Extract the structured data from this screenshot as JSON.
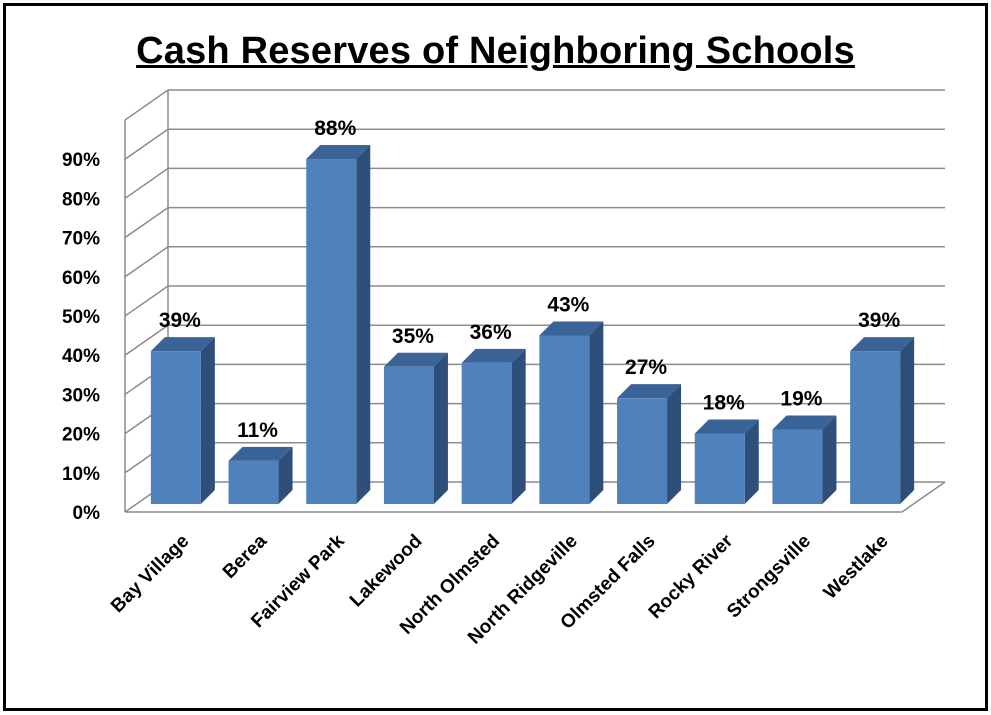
{
  "chart_data": {
    "type": "bar",
    "title": "Cash Reserves of Neighboring Schools",
    "categories": [
      "Bay Village",
      "Berea",
      "Fairview Park",
      "Lakewood",
      "North Olmsted",
      "North Ridgeville",
      "Olmsted Falls",
      "Rocky River",
      "Strongsville",
      "Westlake"
    ],
    "values": [
      39,
      11,
      88,
      35,
      36,
      43,
      27,
      18,
      19,
      39
    ],
    "data_labels": [
      "39%",
      "11%",
      "88%",
      "35%",
      "36%",
      "43%",
      "27%",
      "18%",
      "19%",
      "39%"
    ],
    "yticks": [
      "0%",
      "10%",
      "20%",
      "30%",
      "40%",
      "50%",
      "60%",
      "70%",
      "80%",
      "90%"
    ],
    "ylim": [
      0,
      100
    ],
    "grid": true,
    "style": "3d-column",
    "colors": {
      "front": "#4F81BD",
      "side": "#2E4F7A",
      "top": "#3A6398",
      "grid": "#8C8C8C"
    }
  }
}
